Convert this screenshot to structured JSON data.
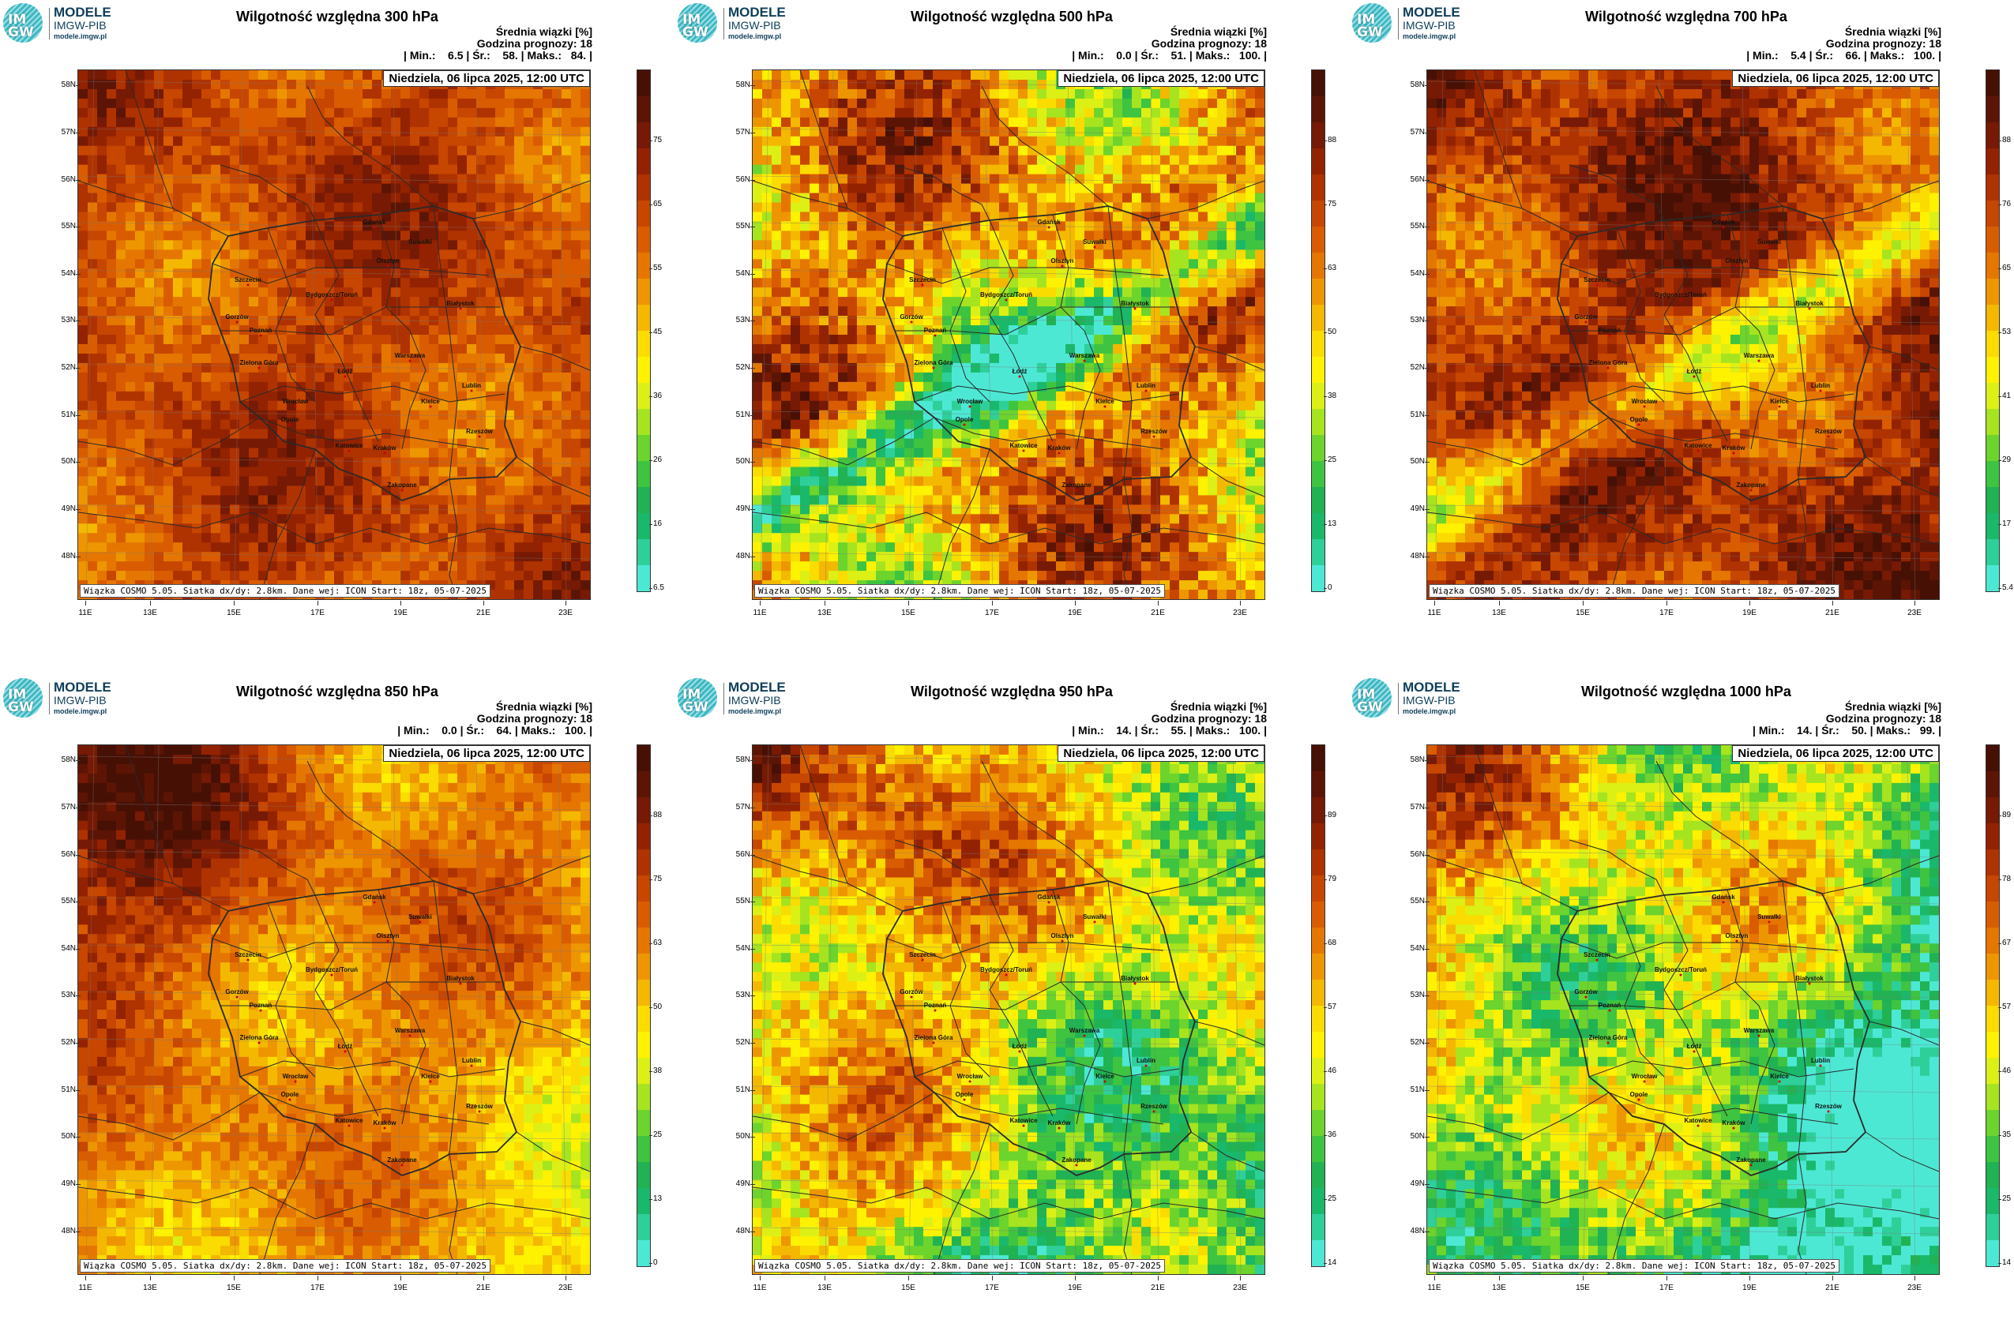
{
  "logo": {
    "mark": "IM\nGW",
    "name": "MODELE",
    "org": "IMGW-PIB",
    "url": "modele.imgw.pl"
  },
  "colors": {
    "scale": [
      "#4de8d4",
      "#2fcf9a",
      "#1ab86a",
      "#21b253",
      "#3ec440",
      "#6cd42c",
      "#a6e41f",
      "#dcf016",
      "#fff200",
      "#fadc00",
      "#f4b800",
      "#ee9600",
      "#e57700",
      "#d95d00",
      "#c74600",
      "#af3300",
      "#932300",
      "#761a05",
      "#5c1505",
      "#471005"
    ],
    "border": "#2a2a2a"
  },
  "panels": [
    {
      "title": "Wilgotność względna 300 hPa",
      "mean_label": "Średnia wiązki [%]",
      "hour_label": "Godzina prognozy: 18",
      "stats": "| Min.:    6.5 | Śr.:    58. | Maks.:   84. |",
      "date": "Niedziela, 06 lipca 2025, 12:00 UTC",
      "footer": "Wiązka COSMO 5.05. Siatka dx/dy: 2.8km. Dane wej: ICON Start: 18z, 05-07-2025",
      "colorbar_ticks": [
        "75",
        "65",
        "55",
        "45",
        "36",
        "26",
        "16",
        "6.5"
      ],
      "field": {
        "base": 14,
        "spread": 3,
        "green_band": 0,
        "n_dark": 0,
        "s_light": 0
      }
    },
    {
      "title": "Wilgotność względna 500 hPa",
      "mean_label": "Średnia wiązki [%]",
      "hour_label": "Godzina prognozy: 18",
      "stats": "| Min.:    0.0 | Śr.:    51. | Maks.:   100. |",
      "date": "Niedziela, 06 lipca 2025, 12:00 UTC",
      "footer": "Wiązka COSMO 5.05. Siatka dx/dy: 2.8km. Dane wej: ICON Start: 18z, 05-07-2025",
      "colorbar_ticks": [
        "88",
        "75",
        "63",
        "50",
        "38",
        "25",
        "13",
        "0"
      ],
      "field": {
        "base": 11,
        "spread": 6,
        "green_band": 1,
        "n_dark": 0,
        "s_light": 0
      }
    },
    {
      "title": "Wilgotność względna 700 hPa",
      "mean_label": "Średnia wiązki [%]",
      "hour_label": "Godzina prognozy: 18",
      "stats": "| Min.:    5.4 | Śr.:    66. | Maks.:   100. |",
      "date": "Niedziela, 06 lipca 2025, 12:00 UTC",
      "footer": "Wiązka COSMO 5.05. Siatka dx/dy: 2.8km. Dane wej: ICON Start: 18z, 05-07-2025",
      "colorbar_ticks": [
        "88",
        "76",
        "65",
        "53",
        "41",
        "29",
        "17",
        "5.4"
      ],
      "field": {
        "base": 15,
        "spread": 4,
        "green_band": 0.7,
        "n_dark": 0,
        "s_light": 0
      }
    },
    {
      "title": "Wilgotność względna 850 hPa",
      "mean_label": "Średnia wiązki [%]",
      "hour_label": "Godzina prognozy: 18",
      "stats": "| Min.:    0.0 | Śr.:    64. | Maks.:   100. |",
      "date": "Niedziela, 06 lipca 2025, 12:00 UTC",
      "footer": "Wiązka COSMO 5.05. Siatka dx/dy: 2.8km. Dane wej: ICON Start: 18z, 05-07-2025",
      "colorbar_ticks": [
        "88",
        "75",
        "63",
        "50",
        "38",
        "25",
        "13",
        "0"
      ],
      "field": {
        "base": 12,
        "spread": 3,
        "green_band": 0,
        "n_dark": 1,
        "s_light": 0.4
      }
    },
    {
      "title": "Wilgotność względna 950 hPa",
      "mean_label": "Średnia wiązki [%]",
      "hour_label": "Godzina prognozy: 18",
      "stats": "| Min.:    14. | Śr.:    55. | Maks.:   100. |",
      "date": "Niedziela, 06 lipca 2025, 12:00 UTC",
      "footer": "Wiązka COSMO 5.05. Siatka dx/dy: 2.8km. Dane wej: ICON Start: 18z, 05-07-2025",
      "colorbar_ticks": [
        "89",
        "79",
        "68",
        "57",
        "46",
        "36",
        "25",
        "14"
      ],
      "field": {
        "base": 9,
        "spread": 5,
        "green_band": 0,
        "n_dark": 1,
        "s_light": 1
      }
    },
    {
      "title": "Wilgotność względna 1000 hPa",
      "mean_label": "Średnia wiązki [%]",
      "hour_label": "Godzina prognozy: 18",
      "stats": "| Min.:    14. | Śr.:    50. | Maks.:   99. |",
      "date": "Niedziela, 06 lipca 2025, 12:00 UTC",
      "footer": "Wiązka COSMO 5.05. Siatka dx/dy: 2.8km. Dane wej: ICON Start: 18z, 05-07-2025",
      "colorbar_ticks": [
        "89",
        "78",
        "67",
        "57",
        "46",
        "35",
        "25",
        "14"
      ],
      "field": {
        "base": 7,
        "spread": 5,
        "green_band": 0,
        "n_dark": 0.8,
        "s_light": 1.2
      }
    }
  ],
  "lat_labels": [
    "58N",
    "57N",
    "56N",
    "55N",
    "54N",
    "53N",
    "52N",
    "51N",
    "50N",
    "49N",
    "48N"
  ],
  "lon_labels": [
    "11E",
    "13E",
    "15E",
    "17E",
    "19E",
    "21E",
    "23E"
  ],
  "cities": [
    "Gdańsk",
    "Olsztyn",
    "Suwałki",
    "Szczecin",
    "Białystok",
    "Bydgoszcz/Toruń",
    "Gorzów",
    "Poznań",
    "Warszawa",
    "Zielona Góra",
    "Łódź",
    "Lublin",
    "Wrocław",
    "Kielce",
    "Opole",
    "Rzeszów",
    "Katowice",
    "Kraków",
    "Zakopane"
  ]
}
